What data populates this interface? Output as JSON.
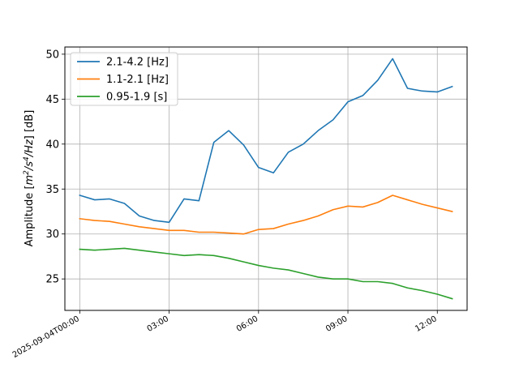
{
  "chart_data": {
    "type": "line",
    "xlabel": "",
    "ylabel_prefix": "Amplitude [",
    "ylabel_unit_parts": [
      "m",
      "2",
      "/s",
      "4",
      "/Hz",
      "] [dB]"
    ],
    "ylim": [
      21.5,
      50.8
    ],
    "xlim_hours": [
      -0.5,
      13.0
    ],
    "grid": true,
    "legend_position": "upper-left",
    "x_ticks": [
      {
        "hour": 0,
        "label": "2025-09-04T00:00"
      },
      {
        "hour": 3,
        "label": "03:00"
      },
      {
        "hour": 6,
        "label": "06:00"
      },
      {
        "hour": 9,
        "label": "09:00"
      },
      {
        "hour": 12,
        "label": "12:00"
      }
    ],
    "y_ticks": [
      25,
      30,
      35,
      40,
      45,
      50
    ],
    "x": [
      "00:00",
      "00:30",
      "01:00",
      "01:30",
      "02:00",
      "02:30",
      "03:00",
      "03:30",
      "04:00",
      "04:30",
      "05:00",
      "05:30",
      "06:00",
      "06:30",
      "07:00",
      "07:30",
      "08:00",
      "08:30",
      "09:00",
      "09:30",
      "10:00",
      "10:30",
      "11:00",
      "11:30",
      "12:00",
      "12:30"
    ],
    "series": [
      {
        "name": "2.1-4.2 [Hz]",
        "color": "#1f77b4",
        "values": [
          34.3,
          33.8,
          33.9,
          33.4,
          32.0,
          31.5,
          31.3,
          33.9,
          33.7,
          40.2,
          41.5,
          39.9,
          37.4,
          36.8,
          39.1,
          40.0,
          41.5,
          42.7,
          44.7,
          45.4,
          47.1,
          49.5,
          46.2,
          45.9,
          45.8,
          46.4
        ]
      },
      {
        "name": "1.1-2.1 [Hz]",
        "color": "#ff7f0e",
        "values": [
          31.7,
          31.5,
          31.4,
          31.1,
          30.8,
          30.6,
          30.4,
          30.4,
          30.2,
          30.2,
          30.1,
          30.0,
          30.5,
          30.6,
          31.1,
          31.5,
          32.0,
          32.7,
          33.1,
          33.0,
          33.5,
          34.3,
          33.8,
          33.3,
          32.9,
          32.5
        ]
      },
      {
        "name": "0.95-1.9 [s]",
        "color": "#2ca02c",
        "values": [
          28.3,
          28.2,
          28.3,
          28.4,
          28.2,
          28.0,
          27.8,
          27.6,
          27.7,
          27.6,
          27.3,
          26.9,
          26.5,
          26.2,
          26.0,
          25.6,
          25.2,
          25.0,
          25.0,
          24.7,
          24.7,
          24.5,
          24.0,
          23.7,
          23.3,
          22.8
        ]
      }
    ]
  }
}
